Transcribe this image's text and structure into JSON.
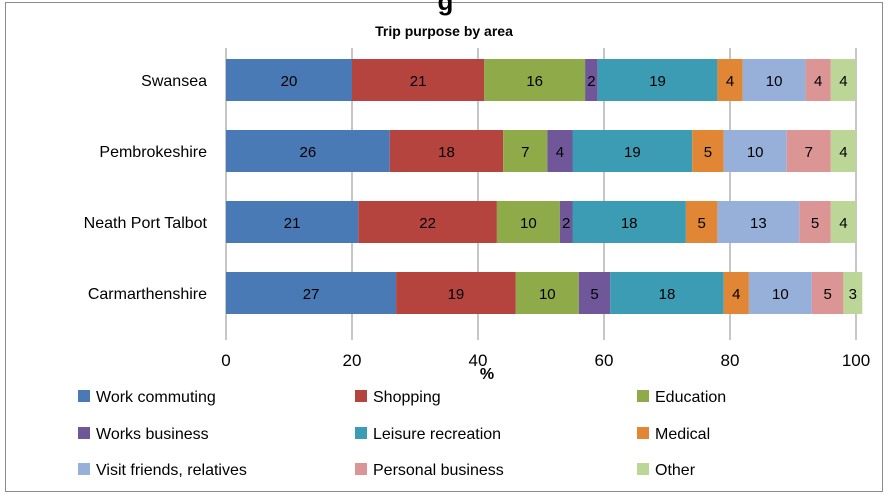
{
  "page": {
    "cut_title": "g"
  },
  "chart_data": {
    "type": "bar",
    "orientation": "horizontal",
    "stacked": true,
    "title": "Trip purpose by area",
    "xlabel": "%",
    "ylabel": "",
    "xlim": [
      0,
      100
    ],
    "xticks": [
      0,
      20,
      40,
      60,
      80,
      100
    ],
    "grid": true,
    "legend_position": "bottom",
    "categories": [
      "Swansea",
      "Pembrokeshire",
      "Neath Port Talbot",
      "Carmarthenshire"
    ],
    "series": [
      {
        "name": "Work commuting",
        "color": "#4a7ab5",
        "values": [
          20,
          26,
          21,
          27
        ]
      },
      {
        "name": "Shopping",
        "color": "#b5443f",
        "values": [
          21,
          18,
          22,
          19
        ]
      },
      {
        "name": "Education",
        "color": "#8faa48",
        "values": [
          16,
          7,
          10,
          10
        ]
      },
      {
        "name": "Works business",
        "color": "#70579a",
        "values": [
          2,
          4,
          2,
          5
        ]
      },
      {
        "name": "Leisure recreation",
        "color": "#3c9cb4",
        "values": [
          19,
          19,
          18,
          18
        ]
      },
      {
        "name": "Medical",
        "color": "#e08634",
        "values": [
          4,
          5,
          5,
          4
        ]
      },
      {
        "name": "Visit friends, relatives",
        "color": "#97b0d9",
        "values": [
          10,
          10,
          13,
          10
        ]
      },
      {
        "name": "Personal business",
        "color": "#dc9595",
        "values": [
          4,
          7,
          5,
          5
        ]
      },
      {
        "name": "Other",
        "color": "#bcd697",
        "values": [
          4,
          4,
          4,
          3
        ]
      }
    ]
  }
}
